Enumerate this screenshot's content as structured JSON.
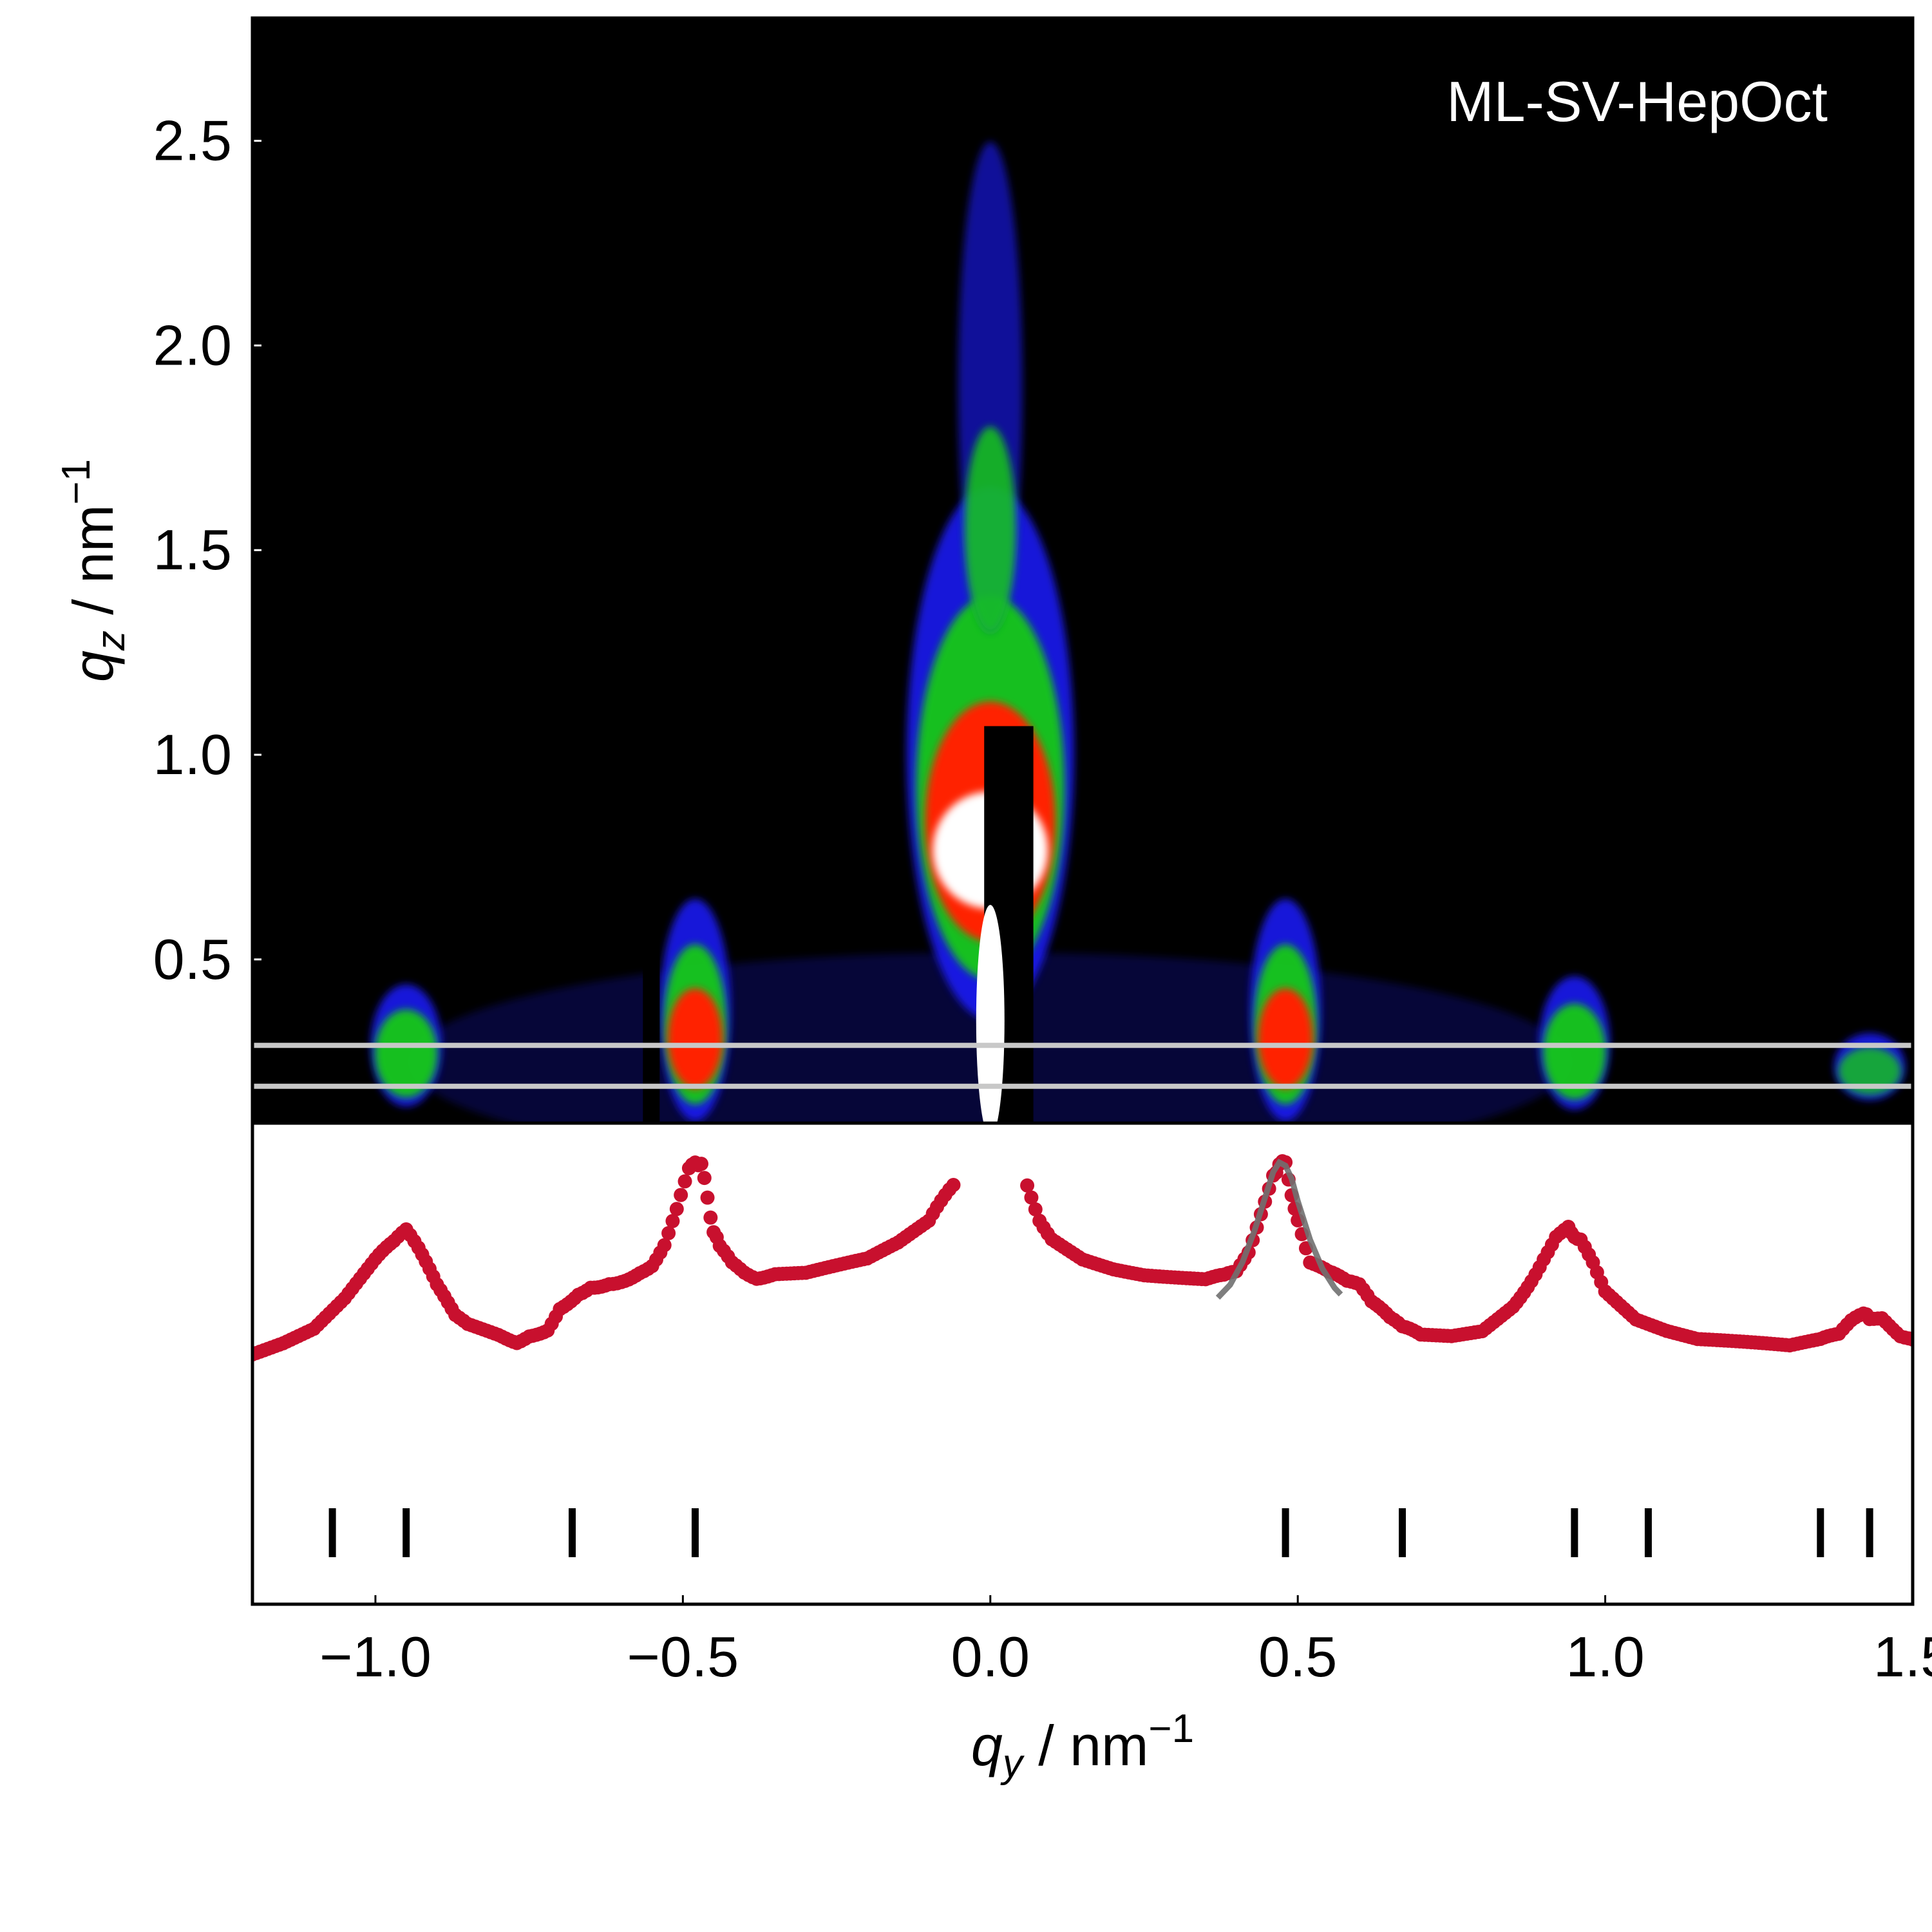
{
  "chart_data": [
    {
      "type": "heatmap",
      "annotation": "ML-SV-HepOct",
      "ylabel": {
        "symbol": "q",
        "sub": "z",
        "unit": "nm",
        "exp": "−1"
      },
      "xlim": [
        -1.2,
        1.5
      ],
      "ylim": [
        0.1,
        2.8
      ],
      "yticks": [
        0.5,
        1.0,
        1.5,
        2.0,
        2.5
      ],
      "ytick_labels": [
        "0.5",
        "1.0",
        "1.5",
        "2.0",
        "2.5"
      ],
      "colors": {
        "background": "#000000",
        "low": "#1a1aff",
        "mid": "#19c919",
        "high": "#ff2200",
        "max": "#ffffff",
        "cut_lines": "#c8c8c8"
      },
      "integration_band_qz": [
        0.19,
        0.29
      ],
      "blobs": [
        {
          "qy": -0.95,
          "qz": 0.22,
          "height": 0.55,
          "intensity": 0.55
        },
        {
          "qy": -0.48,
          "qz": 0.25,
          "height": 1.0,
          "intensity": 0.9
        },
        {
          "qy": 0.48,
          "qz": 0.25,
          "height": 1.0,
          "intensity": 0.9
        },
        {
          "qy": 0.95,
          "qz": 0.22,
          "height": 0.6,
          "intensity": 0.55
        },
        {
          "qy": 1.43,
          "qz": 0.2,
          "height": 0.3,
          "intensity": 0.35
        },
        {
          "qy": 0.0,
          "qz": 0.7,
          "height": 2.4,
          "intensity": 1.0
        }
      ]
    },
    {
      "type": "scatter",
      "xlabel": {
        "symbol": "q",
        "sub": "y",
        "unit": "nm",
        "exp": "−1"
      },
      "xlim": [
        -1.2,
        1.5
      ],
      "xticks": [
        -1.0,
        -0.5,
        0.0,
        0.5,
        1.0,
        1.5
      ],
      "xtick_labels": [
        "−1.0",
        "−0.5",
        "0.0",
        "0.5",
        "1.0",
        "1.5"
      ],
      "y_units": "arbitrary (log intensity, no ticks)",
      "ylim": [
        0,
        1
      ],
      "series": [
        {
          "color": "#c8102e",
          "x": [
            -1.2,
            -1.15,
            -1.1,
            -1.05,
            -1.0,
            -0.97,
            -0.95,
            -0.93,
            -0.9,
            -0.87,
            -0.85,
            -0.8,
            -0.77,
            -0.75,
            -0.72,
            -0.7,
            -0.67,
            -0.65,
            -0.62,
            -0.6,
            -0.57,
            -0.55,
            -0.53,
            -0.51,
            -0.49,
            -0.48,
            -0.47,
            -0.46,
            -0.45,
            -0.44,
            -0.42,
            -0.4,
            -0.38,
            -0.35,
            -0.3,
            -0.25,
            -0.2,
            -0.15,
            -0.1,
            -0.08,
            -0.06,
            0.06,
            0.08,
            0.1,
            0.15,
            0.2,
            0.25,
            0.3,
            0.35,
            0.38,
            0.4,
            0.42,
            0.44,
            0.46,
            0.47,
            0.48,
            0.49,
            0.5,
            0.52,
            0.55,
            0.58,
            0.6,
            0.62,
            0.65,
            0.67,
            0.7,
            0.75,
            0.8,
            0.85,
            0.88,
            0.9,
            0.92,
            0.94,
            0.95,
            0.96,
            0.98,
            1.0,
            1.05,
            1.1,
            1.15,
            1.2,
            1.25,
            1.3,
            1.35,
            1.38,
            1.4,
            1.42,
            1.43,
            1.45,
            1.48,
            1.5
          ],
          "y": [
            0.38,
            0.41,
            0.45,
            0.54,
            0.66,
            0.72,
            0.75,
            0.7,
            0.58,
            0.5,
            0.46,
            0.43,
            0.42,
            0.43,
            0.46,
            0.52,
            0.57,
            0.59,
            0.6,
            0.61,
            0.63,
            0.66,
            0.72,
            0.82,
            0.94,
            0.98,
            0.96,
            0.86,
            0.76,
            0.7,
            0.65,
            0.63,
            0.62,
            0.62,
            0.62,
            0.64,
            0.66,
            0.71,
            0.78,
            0.84,
            0.9,
            0.9,
            0.8,
            0.74,
            0.68,
            0.65,
            0.63,
            0.62,
            0.61,
            0.61,
            0.63,
            0.7,
            0.82,
            0.93,
            0.97,
            0.96,
            0.88,
            0.78,
            0.66,
            0.62,
            0.6,
            0.58,
            0.53,
            0.48,
            0.45,
            0.43,
            0.43,
            0.45,
            0.53,
            0.61,
            0.68,
            0.74,
            0.76,
            0.75,
            0.72,
            0.66,
            0.58,
            0.49,
            0.45,
            0.42,
            0.41,
            0.4,
            0.39,
            0.41,
            0.44,
            0.47,
            0.49,
            0.49,
            0.48,
            0.44,
            0.42
          ]
        }
      ],
      "fit_curve": {
        "color": "#707070",
        "x": [
          0.37,
          0.39,
          0.41,
          0.43,
          0.45,
          0.46,
          0.47,
          0.48,
          0.49,
          0.5,
          0.52,
          0.54,
          0.56,
          0.57
        ],
        "y": [
          0.55,
          0.59,
          0.66,
          0.76,
          0.88,
          0.94,
          0.97,
          0.96,
          0.92,
          0.85,
          0.73,
          0.64,
          0.58,
          0.56
        ]
      },
      "reflection_marks_qy": [
        -1.07,
        -0.95,
        -0.68,
        -0.48,
        0.48,
        0.67,
        0.95,
        1.07,
        1.35,
        1.43
      ]
    }
  ]
}
